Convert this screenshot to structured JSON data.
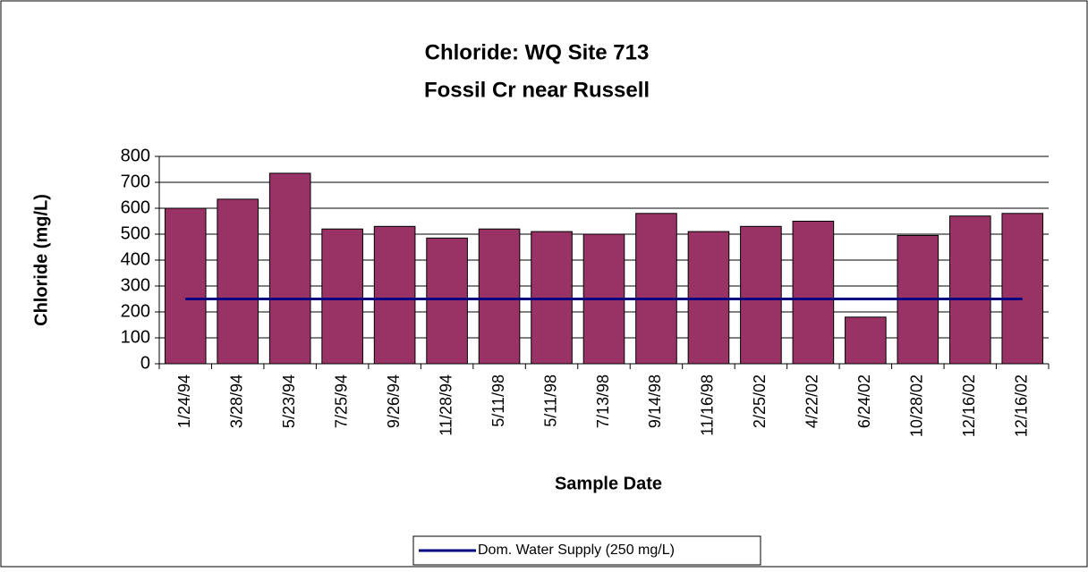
{
  "chart_data": {
    "type": "bar",
    "title": "Chloride: WQ Site 713",
    "subtitle": "Fossil Cr near Russell",
    "x_label": "Sample Date",
    "y_label": "Chloride (mg/L)",
    "categories": [
      "1/24/94",
      "3/28/94",
      "5/23/94",
      "7/25/94",
      "9/26/94",
      "11/28/94",
      "5/11/98",
      "5/11/98",
      "7/13/98",
      "9/14/98",
      "11/16/98",
      "2/25/02",
      "4/22/02",
      "6/24/02",
      "10/28/02",
      "12/16/02",
      "12/16/02"
    ],
    "series": [
      {
        "type": "bar",
        "color": "#993366",
        "values": [
          600,
          635,
          735,
          520,
          530,
          485,
          520,
          510,
          500,
          580,
          510,
          530,
          550,
          180,
          495,
          570,
          580
        ]
      },
      {
        "type": "line",
        "name": "Dom. Water Supply (250 mg/L)",
        "color": "#000080",
        "values": [
          250,
          250,
          250,
          250,
          250,
          250,
          250,
          250,
          250,
          250,
          250,
          250,
          250,
          250,
          250,
          250,
          250
        ]
      }
    ],
    "ylim": [
      0,
      800
    ],
    "yticks": [
      0,
      100,
      200,
      300,
      400,
      500,
      600,
      700,
      800
    ],
    "grid": true,
    "legend": "bottom"
  }
}
